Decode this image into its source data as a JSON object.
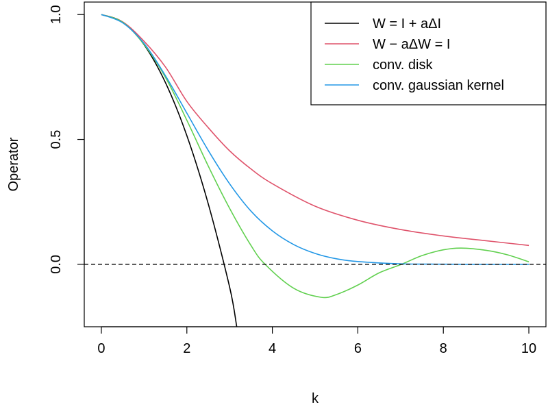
{
  "chart_data": {
    "type": "line",
    "title": "",
    "xlabel": "k",
    "ylabel": "Operator",
    "xlim": [
      -0.4,
      10.4
    ],
    "ylim": [
      -0.25,
      1.05
    ],
    "x_ticks": [
      0,
      2,
      4,
      6,
      8,
      10
    ],
    "x_tick_labels": [
      "0",
      "2",
      "4",
      "6",
      "8",
      "10"
    ],
    "y_ticks": [
      0.0,
      0.5,
      1.0
    ],
    "y_tick_labels": [
      "0.0",
      "0.5",
      "1.0"
    ],
    "reference_line": {
      "y": 0.0,
      "style": "dashed",
      "color": "#000000"
    },
    "legend_position": "top-right",
    "series": [
      {
        "name": "W = I + aΔI",
        "color": "#000000",
        "points": [
          [
            0,
            1.0
          ],
          [
            0.5,
            0.9697
          ],
          [
            1,
            0.8788
          ],
          [
            1.5,
            0.7273
          ],
          [
            2,
            0.5152
          ],
          [
            2.5,
            0.2424
          ],
          [
            3,
            -0.0909
          ],
          [
            3.167,
            -0.25
          ]
        ]
      },
      {
        "name": "W − aΔW = I",
        "color": "#DF536B",
        "points": [
          [
            0,
            1.0
          ],
          [
            0.5,
            0.9706
          ],
          [
            1,
            0.8929
          ],
          [
            1.5,
            0.7899
          ],
          [
            2,
            0.6522
          ],
          [
            2.5,
            0.5472
          ],
          [
            3,
            0.4545
          ],
          [
            3.5,
            0.3817
          ],
          [
            4,
            0.3226
          ],
          [
            5,
            0.2326
          ],
          [
            6,
            0.1763
          ],
          [
            7,
            0.1393
          ],
          [
            8,
            0.1136
          ],
          [
            9,
            0.0943
          ],
          [
            10,
            0.0755
          ]
        ]
      },
      {
        "name": "conv. disk",
        "color": "#61D04F",
        "points": [
          [
            0,
            1.0
          ],
          [
            0.5,
            0.9689
          ],
          [
            1,
            0.8801
          ],
          [
            1.5,
            0.7485
          ],
          [
            2,
            0.5767
          ],
          [
            2.5,
            0.3936
          ],
          [
            3,
            0.2241
          ],
          [
            3.5,
            0.0754
          ],
          [
            3.83,
            0.0
          ],
          [
            4.5,
            -0.096
          ],
          [
            5.14,
            -0.132
          ],
          [
            5.5,
            -0.121
          ],
          [
            6,
            -0.083
          ],
          [
            6.5,
            -0.034
          ],
          [
            7.02,
            0.0
          ],
          [
            7.5,
            0.035
          ],
          [
            8,
            0.058
          ],
          [
            8.42,
            0.065
          ],
          [
            9,
            0.056
          ],
          [
            9.5,
            0.038
          ],
          [
            10,
            0.01
          ]
        ]
      },
      {
        "name": "conv. gaussian kernel",
        "color": "#2297E6",
        "points": [
          [
            0,
            1.0
          ],
          [
            0.5,
            0.9667
          ],
          [
            1,
            0.8841
          ],
          [
            1.5,
            0.7548
          ],
          [
            2,
            0.6053
          ],
          [
            2.5,
            0.4561
          ],
          [
            3,
            0.3224
          ],
          [
            3.5,
            0.213
          ],
          [
            4,
            0.134
          ],
          [
            4.5,
            0.079
          ],
          [
            5,
            0.0435
          ],
          [
            5.5,
            0.022
          ],
          [
            6,
            0.011
          ],
          [
            7,
            0.002
          ],
          [
            8,
            0.0005
          ],
          [
            9,
            0.0
          ],
          [
            10,
            0.0
          ]
        ]
      }
    ]
  }
}
